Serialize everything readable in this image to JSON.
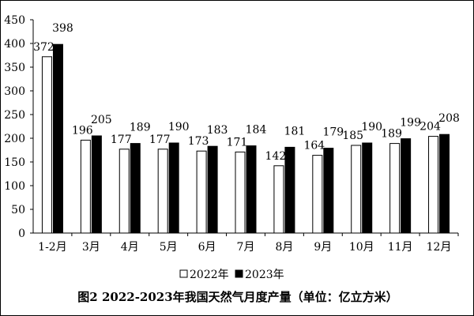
{
  "caption": "图2 2022-2023年我国天然气月度产量（单位：亿立方米）",
  "chart_data": {
    "type": "bar",
    "categories": [
      "1-2月",
      "3月",
      "4月",
      "5月",
      "6月",
      "7月",
      "8月",
      "9月",
      "10月",
      "11月",
      "12月"
    ],
    "series": [
      {
        "name": "2022年",
        "values": [
          372,
          196,
          177,
          177,
          173,
          171,
          142,
          164,
          185,
          189,
          204
        ],
        "color": "#ffffff"
      },
      {
        "name": "2023年",
        "values": [
          398,
          205,
          189,
          190,
          183,
          184,
          181,
          179,
          190,
          199,
          208
        ],
        "color": "#000000"
      }
    ],
    "ylim": [
      0,
      450
    ],
    "yticks": [
      0,
      50,
      100,
      150,
      200,
      250,
      300,
      350,
      400,
      450
    ],
    "grid": false,
    "legend_position": "bottom-center",
    "xlabel": "",
    "ylabel": ""
  }
}
